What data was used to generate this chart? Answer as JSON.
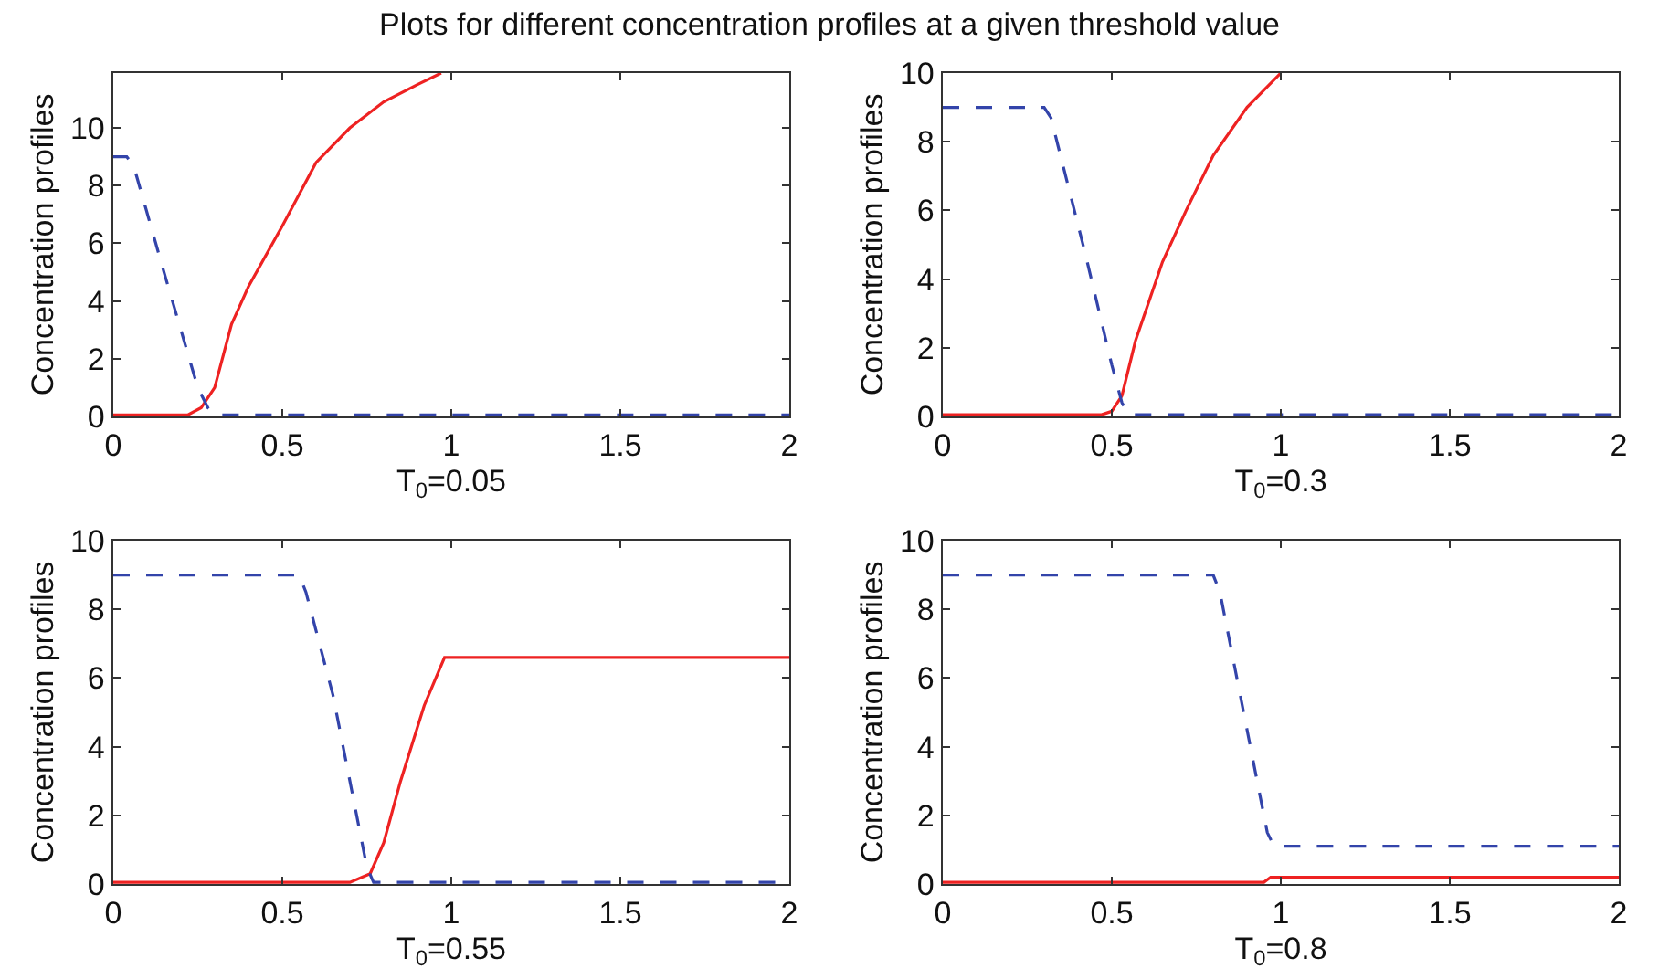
{
  "chart_data": [
    {
      "type": "line",
      "title": "Plots for different concentration profiles at a given threshold value",
      "xlabel": "T$_{0}$=0.05",
      "ylabel": "Concentration profiles",
      "xlim": [
        0,
        2
      ],
      "xticks": [
        0,
        0.5,
        1,
        1.5,
        2
      ],
      "ylim": [
        0,
        11.9
      ],
      "yticks": [
        0,
        2,
        4,
        6,
        8,
        10
      ],
      "series": [
        {
          "color": "#ee2222",
          "line_style": "solid",
          "x": [
            0,
            0.22,
            0.26,
            0.3,
            0.35,
            0.4,
            0.5,
            0.6,
            0.7,
            0.8,
            0.9,
            0.97
          ],
          "values": [
            0.05,
            0.05,
            0.3,
            1,
            3.2,
            4.5,
            6.6,
            8.8,
            10,
            10.9,
            11.5,
            11.9
          ]
        },
        {
          "color": "#3344aa",
          "line_style": "dashed",
          "x": [
            0,
            0.04,
            0.06,
            0.15,
            0.25,
            0.28,
            0.3,
            2
          ],
          "values": [
            9,
            9,
            8.7,
            5,
            1,
            0.3,
            0.05,
            0.05
          ]
        }
      ]
    },
    {
      "type": "line",
      "xlabel": "T$_{0}$=0.3",
      "ylabel": "Concentration profiles",
      "xlim": [
        0,
        2
      ],
      "xticks": [
        0,
        0.5,
        1,
        1.5,
        2
      ],
      "ylim": [
        0,
        10
      ],
      "yticks": [
        0,
        2,
        4,
        6,
        8,
        10
      ],
      "series": [
        {
          "color": "#ee2222",
          "line_style": "solid",
          "x": [
            0,
            0.47,
            0.5,
            0.53,
            0.57,
            0.65,
            0.72,
            0.8,
            0.9,
            1
          ],
          "values": [
            0.05,
            0.05,
            0.15,
            0.6,
            2.2,
            4.5,
            6,
            7.6,
            9,
            10
          ]
        },
        {
          "color": "#3344aa",
          "line_style": "dashed",
          "x": [
            0,
            0.3,
            0.32,
            0.42,
            0.5,
            0.53,
            0.55,
            2
          ],
          "values": [
            9,
            9,
            8.7,
            4.8,
            1.5,
            0.4,
            0.05,
            0.05
          ]
        }
      ]
    },
    {
      "type": "line",
      "xlabel": "T$_{0}$=0.55",
      "ylabel": "Concentration profiles",
      "xlim": [
        0,
        2
      ],
      "xticks": [
        0,
        0.5,
        1,
        1.5,
        2
      ],
      "ylim": [
        0,
        10
      ],
      "yticks": [
        0,
        2,
        4,
        6,
        8,
        10
      ],
      "series": [
        {
          "color": "#ee2222",
          "line_style": "solid",
          "x": [
            0,
            0.7,
            0.76,
            0.8,
            0.85,
            0.92,
            0.98,
            2
          ],
          "values": [
            0.05,
            0.05,
            0.3,
            1.2,
            3,
            5.2,
            6.6,
            6.6
          ]
        },
        {
          "color": "#3344aa",
          "line_style": "dashed",
          "x": [
            0,
            0.55,
            0.57,
            0.65,
            0.72,
            0.75,
            0.77,
            2
          ],
          "values": [
            9,
            9,
            8.5,
            5.5,
            2,
            0.5,
            0.05,
            0.05
          ]
        }
      ]
    },
    {
      "type": "line",
      "xlabel": "T$_{0}$=0.8",
      "ylabel": "Concentration profiles",
      "xlim": [
        0,
        2
      ],
      "xticks": [
        0,
        0.5,
        1,
        1.5,
        2
      ],
      "ylim": [
        0,
        10
      ],
      "yticks": [
        0,
        2,
        4,
        6,
        8,
        10
      ],
      "series": [
        {
          "color": "#ee2222",
          "line_style": "solid",
          "x": [
            0,
            0.95,
            0.97,
            2
          ],
          "values": [
            0.05,
            0.05,
            0.2,
            0.2
          ]
        },
        {
          "color": "#3344aa",
          "line_style": "dashed",
          "x": [
            0,
            0.8,
            0.82,
            0.9,
            0.96,
            0.98,
            2
          ],
          "values": [
            9,
            9,
            8.5,
            4.5,
            1.5,
            1.1,
            1.1
          ]
        }
      ]
    }
  ]
}
